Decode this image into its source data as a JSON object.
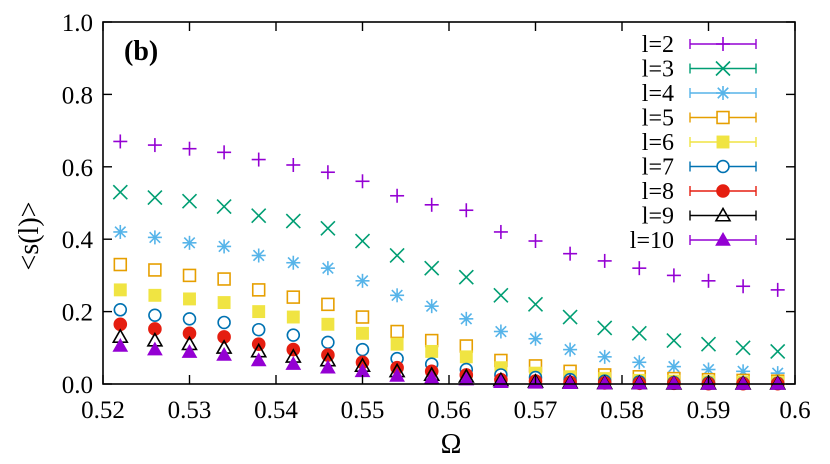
{
  "chart_data": {
    "type": "scatter",
    "panel_label": "(b)",
    "xlabel": "Ω",
    "ylabel": "<s(l)>",
    "xlim": [
      0.52,
      0.6
    ],
    "ylim": [
      0.0,
      1.0
    ],
    "xticks": [
      "0.52",
      "0.53",
      "0.54",
      "0.55",
      "0.56",
      "0.57",
      "0.58",
      "0.59",
      "0.6"
    ],
    "yticks": [
      "0.0",
      "0.2",
      "0.4",
      "0.6",
      "0.8",
      "1.0"
    ],
    "grid": false,
    "legend_position": "top-right",
    "x": [
      0.522,
      0.526,
      0.53,
      0.534,
      0.538,
      0.542,
      0.546,
      0.55,
      0.554,
      0.558,
      0.562,
      0.566,
      0.57,
      0.574,
      0.578,
      0.582,
      0.586,
      0.59,
      0.594,
      0.598
    ],
    "series": [
      {
        "name": "l=2",
        "marker": "plus",
        "color": "#9400d3",
        "values": [
          0.67,
          0.66,
          0.65,
          0.64,
          0.62,
          0.605,
          0.585,
          0.56,
          0.52,
          0.495,
          0.48,
          0.42,
          0.395,
          0.36,
          0.34,
          0.32,
          0.3,
          0.285,
          0.27,
          0.26
        ]
      },
      {
        "name": "l=3",
        "marker": "cross",
        "color": "#009e73",
        "values": [
          0.53,
          0.515,
          0.505,
          0.49,
          0.465,
          0.45,
          0.43,
          0.395,
          0.355,
          0.32,
          0.295,
          0.245,
          0.22,
          0.185,
          0.155,
          0.14,
          0.12,
          0.11,
          0.1,
          0.09
        ]
      },
      {
        "name": "l=4",
        "marker": "asterisk",
        "color": "#56b4e9",
        "values": [
          0.42,
          0.405,
          0.39,
          0.38,
          0.355,
          0.335,
          0.32,
          0.285,
          0.245,
          0.215,
          0.18,
          0.145,
          0.125,
          0.095,
          0.075,
          0.06,
          0.048,
          0.04,
          0.035,
          0.03
        ]
      },
      {
        "name": "l=5",
        "marker": "open-square",
        "color": "#e69f00",
        "values": [
          0.33,
          0.315,
          0.3,
          0.29,
          0.26,
          0.24,
          0.22,
          0.185,
          0.145,
          0.12,
          0.105,
          0.065,
          0.05,
          0.035,
          0.025,
          0.02,
          0.015,
          0.012,
          0.01,
          0.008
        ]
      },
      {
        "name": "l=6",
        "marker": "filled-square",
        "color": "#f0e442",
        "values": [
          0.26,
          0.245,
          0.235,
          0.225,
          0.2,
          0.185,
          0.165,
          0.14,
          0.11,
          0.09,
          0.075,
          0.045,
          0.03,
          0.02,
          0.015,
          0.01,
          0.008,
          0.006,
          0.005,
          0.004
        ]
      },
      {
        "name": "l=7",
        "marker": "open-circle",
        "color": "#0072b2",
        "values": [
          0.205,
          0.19,
          0.18,
          0.17,
          0.15,
          0.135,
          0.115,
          0.095,
          0.07,
          0.055,
          0.04,
          0.025,
          0.018,
          0.012,
          0.008,
          0.006,
          0.004,
          0.003,
          0.002,
          0.002
        ]
      },
      {
        "name": "l=8",
        "marker": "filled-circle",
        "color": "#e51e10",
        "values": [
          0.165,
          0.152,
          0.14,
          0.13,
          0.11,
          0.095,
          0.08,
          0.06,
          0.045,
          0.035,
          0.025,
          0.012,
          0.008,
          0.005,
          0.003,
          0.002,
          0.002,
          0.001,
          0.001,
          0.001
        ]
      },
      {
        "name": "l=9",
        "marker": "open-triangle",
        "color": "#000000",
        "values": [
          0.13,
          0.12,
          0.11,
          0.1,
          0.09,
          0.075,
          0.065,
          0.05,
          0.035,
          0.025,
          0.02,
          0.01,
          0.006,
          0.004,
          0.002,
          0.002,
          0.001,
          0.001,
          0.001,
          0.001
        ]
      },
      {
        "name": "l=10",
        "marker": "filled-triangle",
        "color": "#9400d3",
        "values": [
          0.105,
          0.095,
          0.088,
          0.08,
          0.065,
          0.055,
          0.045,
          0.035,
          0.022,
          0.016,
          0.012,
          0.005,
          0.003,
          0.002,
          0.001,
          0.001,
          0.001,
          0.0,
          0.0,
          0.0
        ]
      }
    ]
  }
}
